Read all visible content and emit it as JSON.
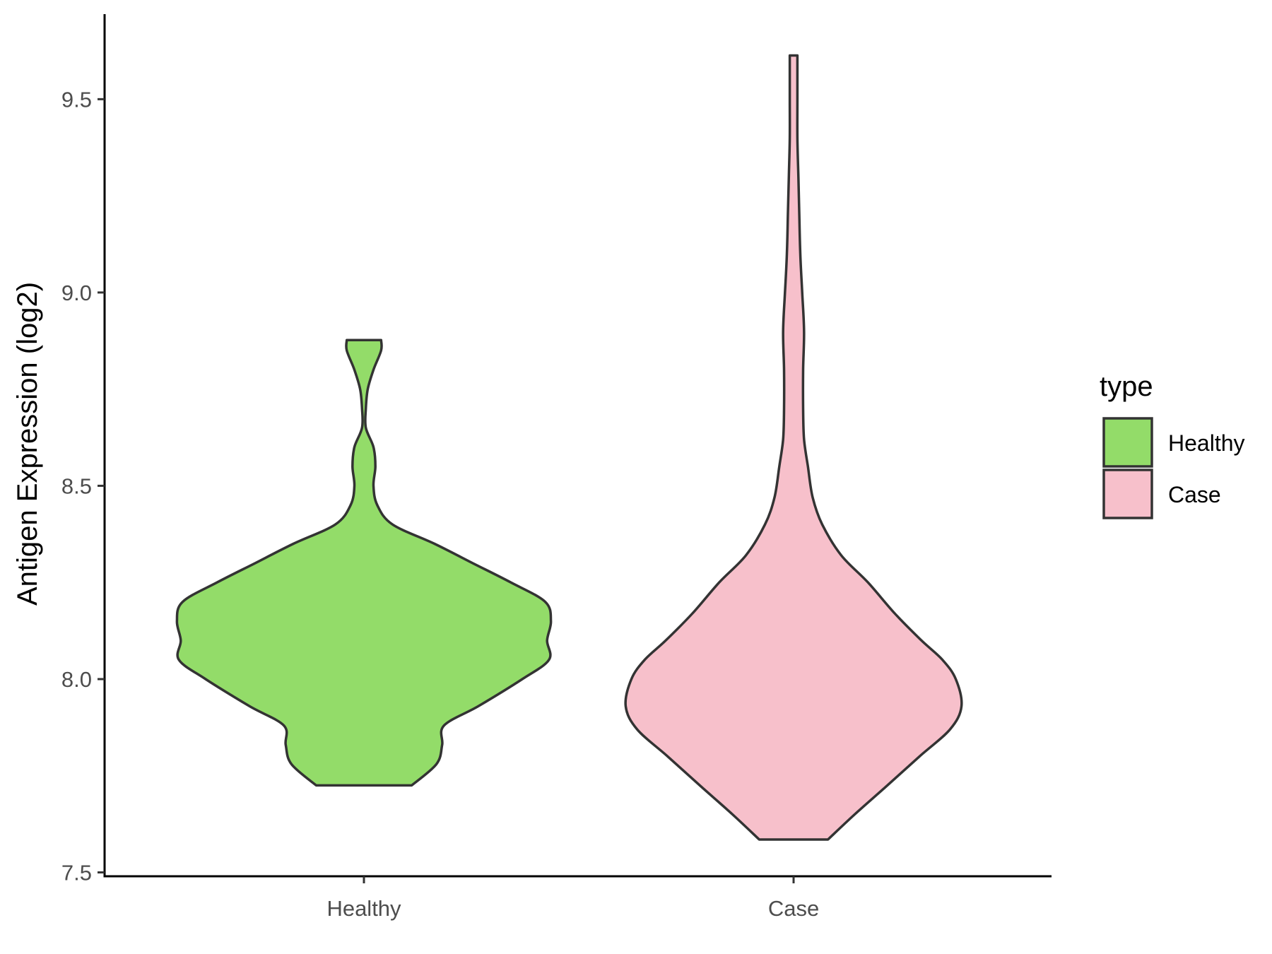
{
  "chart_data": {
    "type": "violin",
    "title": "",
    "xlabel": "",
    "ylabel": "Antigen Expression (log2)",
    "categories": [
      "Healthy",
      "Case"
    ],
    "ylim": [
      7.49,
      9.72
    ],
    "yticks": [
      "7.5",
      "8.0",
      "8.5",
      "9.0",
      "9.5"
    ],
    "grid": false,
    "legend": {
      "title": "type",
      "position": "right",
      "entries": [
        {
          "label": "Healthy",
          "color": "#93dc69"
        },
        {
          "label": "Case",
          "color": "#f7c0cb"
        }
      ]
    },
    "series": [
      {
        "category": "Healthy",
        "color": "#93dc69",
        "min": 7.725,
        "max": 8.877,
        "density_profile": [
          [
            7.725,
            0.25
          ],
          [
            7.78,
            0.38
          ],
          [
            7.83,
            0.41
          ],
          [
            7.88,
            0.42
          ],
          [
            7.93,
            0.6
          ],
          [
            8.0,
            0.83
          ],
          [
            8.05,
            0.97
          ],
          [
            8.1,
            0.96
          ],
          [
            8.15,
            0.98
          ],
          [
            8.2,
            0.95
          ],
          [
            8.25,
            0.77
          ],
          [
            8.3,
            0.57
          ],
          [
            8.35,
            0.37
          ],
          [
            8.4,
            0.15
          ],
          [
            8.45,
            0.07
          ],
          [
            8.5,
            0.05
          ],
          [
            8.55,
            0.06
          ],
          [
            8.6,
            0.05
          ],
          [
            8.65,
            0.01
          ],
          [
            8.7,
            0.01
          ],
          [
            8.75,
            0.02
          ],
          [
            8.8,
            0.05
          ],
          [
            8.85,
            0.09
          ],
          [
            8.877,
            0.09
          ]
        ]
      },
      {
        "category": "Case",
        "color": "#f7c0cb",
        "min": 7.585,
        "max": 9.613,
        "density_profile": [
          [
            7.585,
            0.18
          ],
          [
            7.65,
            0.32
          ],
          [
            7.72,
            0.48
          ],
          [
            7.8,
            0.66
          ],
          [
            7.87,
            0.82
          ],
          [
            7.93,
            0.88
          ],
          [
            8.0,
            0.85
          ],
          [
            8.05,
            0.78
          ],
          [
            8.1,
            0.67
          ],
          [
            8.17,
            0.53
          ],
          [
            8.25,
            0.39
          ],
          [
            8.32,
            0.25
          ],
          [
            8.4,
            0.15
          ],
          [
            8.47,
            0.1
          ],
          [
            8.55,
            0.075
          ],
          [
            8.62,
            0.055
          ],
          [
            8.7,
            0.05
          ],
          [
            8.8,
            0.05
          ],
          [
            8.9,
            0.055
          ],
          [
            9.0,
            0.045
          ],
          [
            9.1,
            0.035
          ],
          [
            9.2,
            0.03
          ],
          [
            9.3,
            0.025
          ],
          [
            9.4,
            0.02
          ],
          [
            9.5,
            0.02
          ],
          [
            9.613,
            0.02
          ]
        ]
      }
    ]
  }
}
